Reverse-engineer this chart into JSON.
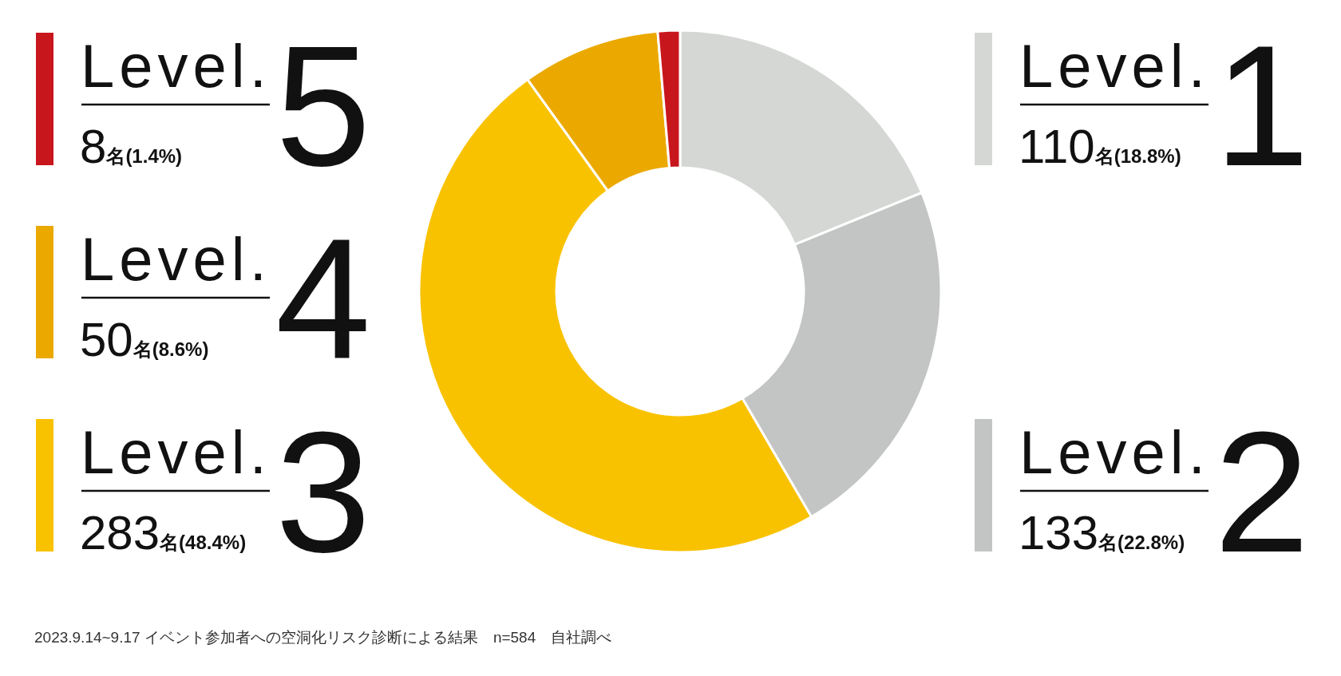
{
  "chart_data": {
    "type": "donut",
    "categories": [
      "Level.1",
      "Level.2",
      "Level.3",
      "Level.4",
      "Level.5"
    ],
    "values": [
      110,
      133,
      283,
      50,
      8
    ],
    "value_labels": [
      "110名(18.8%)",
      "133名(22.8%)",
      "283名(48.4%)",
      "50名(8.6%)",
      "8名(1.4%)"
    ],
    "legend": "left",
    "colors": [
      "#d4d7d4",
      "#c2c5c3",
      "#f9c200",
      "#eba900",
      "#c8161d"
    ],
    "annotations": [
      "2023.9.14~9.17 イベント参加者への空洞化リスク診断による結果　n=584　自社調べ"
    ]
  }
}
